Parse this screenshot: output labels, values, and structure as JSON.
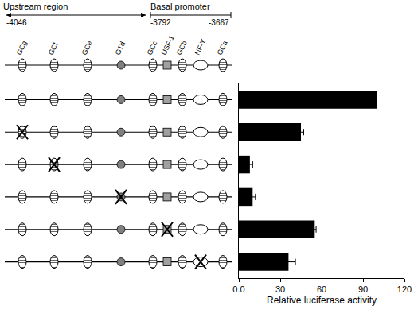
{
  "chart_data": {
    "type": "bar",
    "orientation": "horizontal",
    "categories": [
      null,
      null,
      null,
      null,
      null,
      null
    ],
    "values": [
      100,
      45,
      8,
      10,
      55,
      36
    ],
    "errors": [
      0,
      2,
      2,
      2,
      1,
      5
    ],
    "color": "#000000",
    "xlim": [
      0,
      120
    ],
    "xticks": [
      {
        "value": 0,
        "label": "0.0"
      },
      30,
      60,
      90,
      120
    ],
    "x_label": "Relative luciferase activity",
    "grid": false
  },
  "diagram": {
    "regions": [
      "Upstream region",
      "Basal promoter"
    ],
    "positions": [
      -4046,
      -3792,
      -3667
    ],
    "elements": [
      {
        "label": "GCg",
        "marker": "hatched"
      },
      {
        "label": "GCf",
        "marker": "hatched"
      },
      {
        "label": "GCe",
        "marker": "hatched"
      },
      {
        "label": "GTd",
        "marker": "dot"
      },
      {
        "label": "GCc",
        "marker": "hatched"
      },
      {
        "label": "USF-1",
        "marker": "square"
      },
      {
        "label": "GCb",
        "marker": "hatched"
      },
      {
        "label": "NF-Y",
        "marker": "open"
      },
      {
        "label": "GCa",
        "marker": "hatched"
      }
    ],
    "constructs": [
      {
        "mutated": null
      },
      {
        "mutated": "GCg"
      },
      {
        "mutated": "GCf"
      },
      {
        "mutated": "GTd"
      },
      {
        "mutated": "USF-1"
      },
      {
        "mutated": "NF-Y"
      }
    ]
  }
}
